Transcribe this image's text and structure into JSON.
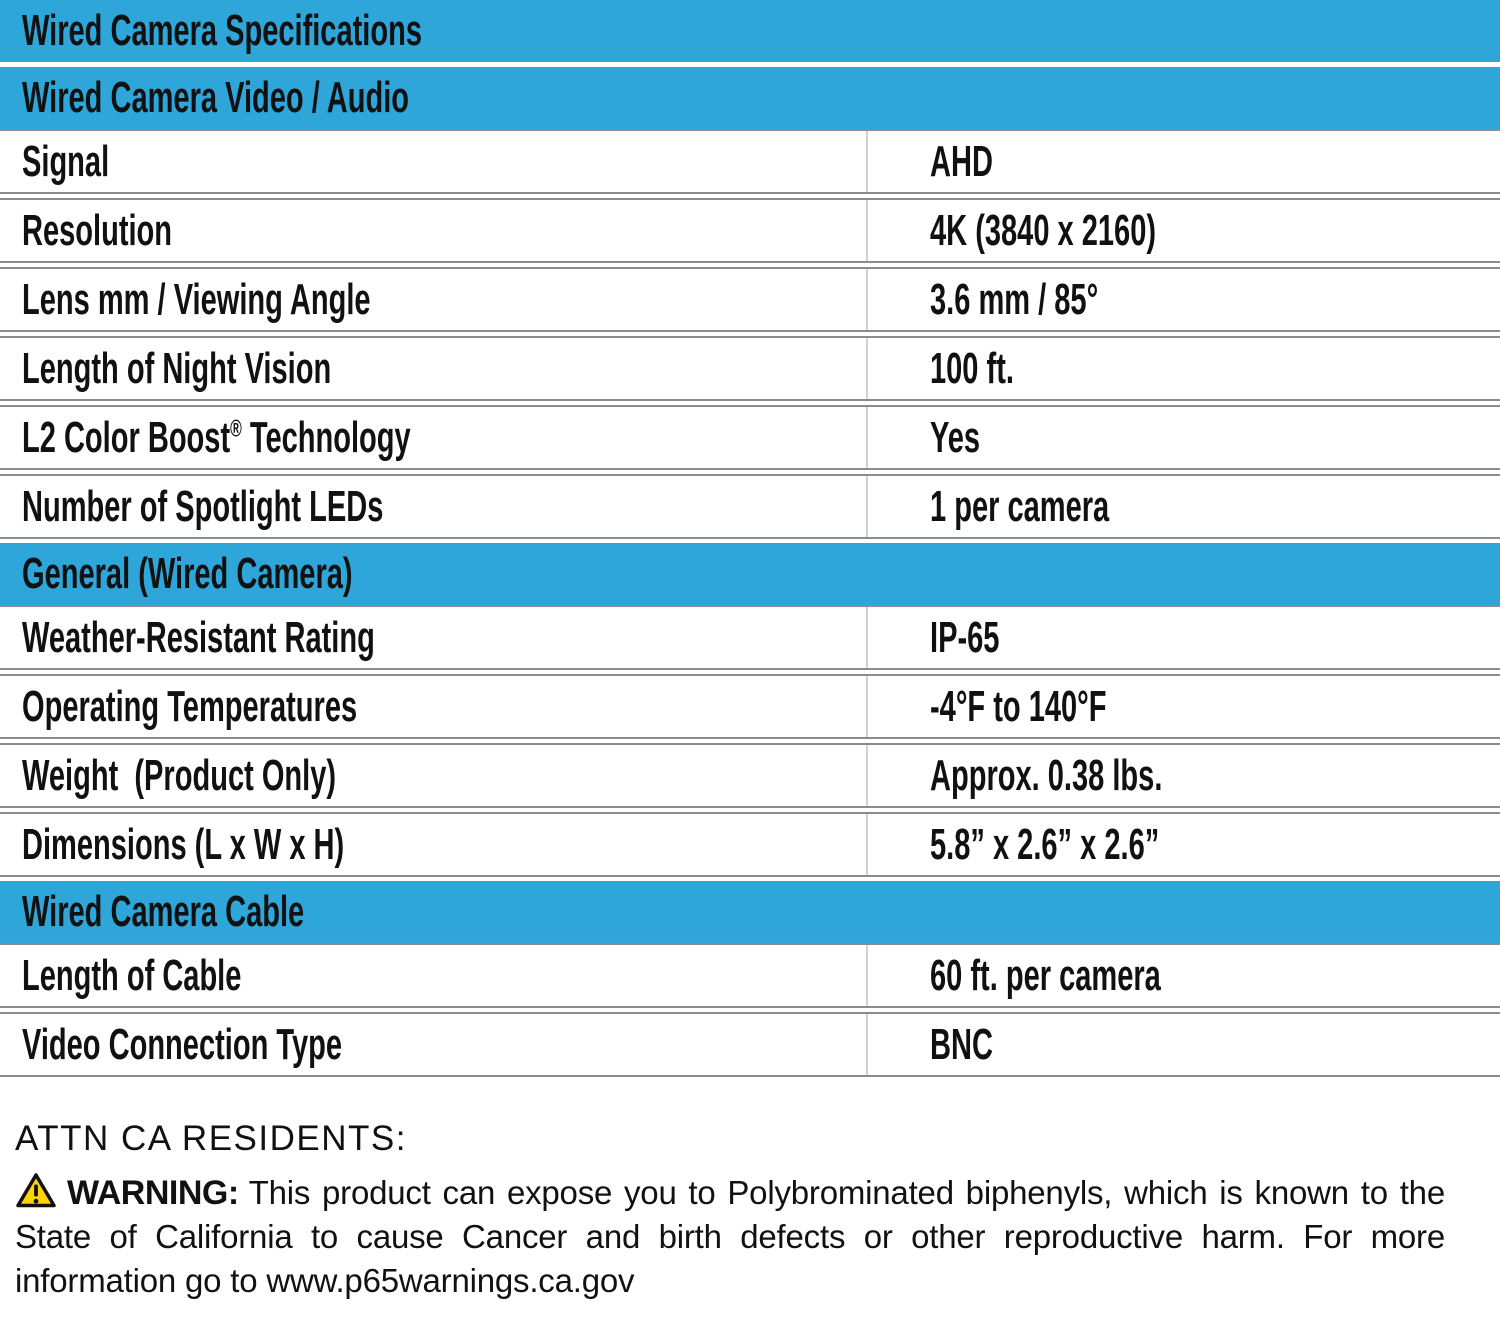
{
  "colors": {
    "header_blue": "#2EA6D9",
    "row_separator_gray": "#8c8c8c",
    "column_divider_gray": "#d2d2d2",
    "text_black": "#111111",
    "warning_triangle_yellow": "#FFD400"
  },
  "table": {
    "title": "Wired Camera Specifications",
    "sections": [
      {
        "heading": "Wired Camera Video / Audio",
        "rows": [
          {
            "label": "Signal",
            "value": "AHD"
          },
          {
            "label": "Resolution",
            "value": "4K (3840 x 2160)"
          },
          {
            "label": "Lens mm / Viewing Angle",
            "value": "3.6 mm / 85°"
          },
          {
            "label": "Length of Night Vision",
            "value": "100 ft."
          },
          {
            "label": "L2 Color Boost® Technology",
            "value": "Yes"
          },
          {
            "label": "Number of Spotlight LEDs",
            "value": "1 per camera"
          }
        ]
      },
      {
        "heading": "General (Wired Camera)",
        "rows": [
          {
            "label": "Weather-Resistant Rating",
            "value": "IP-65"
          },
          {
            "label": "Operating Temperatures",
            "value": "-4°F to 140°F"
          },
          {
            "label": "Weight  (Product Only)",
            "value": "Approx. 0.38 lbs."
          },
          {
            "label": "Dimensions (L x W x H)",
            "value": "5.8” x 2.6” x 2.6”"
          }
        ]
      },
      {
        "heading": "Wired Camera Cable",
        "rows": [
          {
            "label": "Length of Cable",
            "value": "60 ft. per camera"
          },
          {
            "label": "Video Connection Type",
            "value": "BNC"
          }
        ]
      }
    ]
  },
  "footer": {
    "attn_heading": "ATTN CA RESIDENTS:",
    "warning_icon": "warning-triangle-icon",
    "warning_label": "WARNING:",
    "warning_text": "This product can expose you to Polybrominated biphenyls, which is known to the State of California to cause Cancer and birth defects or other reproductive harm. For more information go to www.p65warnings.ca.gov"
  }
}
